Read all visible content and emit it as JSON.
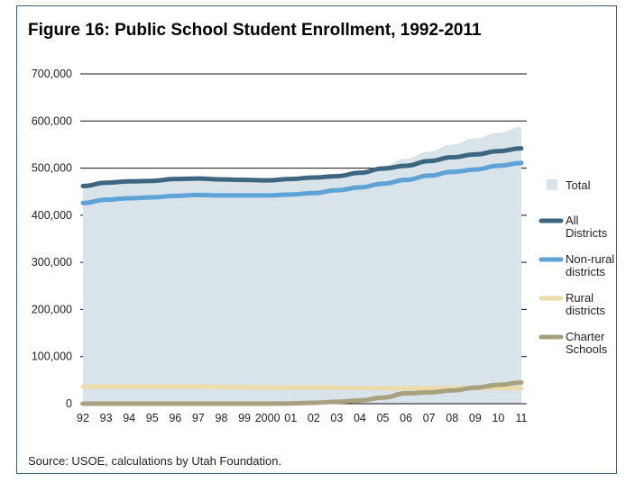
{
  "chart_data": {
    "type": "area",
    "title": "Figure 16: Public School Student Enrollment, 1992-2011",
    "source": "Source: USOE, calculations by Utah Foundation.",
    "categories": [
      "92",
      "93",
      "94",
      "95",
      "96",
      "97",
      "98",
      "99",
      "2000",
      "01",
      "02",
      "03",
      "04",
      "05",
      "06",
      "07",
      "08",
      "09",
      "10",
      "11"
    ],
    "ylim": [
      0,
      700000
    ],
    "yticks": [
      "0",
      "100,000",
      "200,000",
      "300,000",
      "400,000",
      "500,000",
      "600,000",
      "700,000"
    ],
    "ytick_values": [
      0,
      100000,
      200000,
      300000,
      400000,
      500000,
      600000,
      700000
    ],
    "grid": "horizontal",
    "legend_position": "right",
    "series": [
      {
        "key": "total",
        "name": "Total",
        "kind": "area",
        "color": "#d8e3ea",
        "values": [
          462000,
          469000,
          472000,
          474000,
          477000,
          479000,
          477000,
          475000,
          473000,
          476000,
          479000,
          482000,
          490000,
          505000,
          520000,
          535000,
          550000,
          563000,
          575000,
          587000
        ]
      },
      {
        "key": "all",
        "name": "All Districts",
        "name_lines": [
          "All",
          "Districts"
        ],
        "kind": "line",
        "color": "#3d6680",
        "values": [
          462000,
          469000,
          472000,
          473000,
          477000,
          478000,
          476000,
          475000,
          474000,
          477000,
          480000,
          483000,
          490000,
          499000,
          505000,
          515000,
          523000,
          529000,
          536000,
          542000
        ]
      },
      {
        "key": "nonrural",
        "name": "Non-rural districts",
        "name_lines": [
          "Non-rural",
          "districts"
        ],
        "kind": "line",
        "color": "#5ea3d6",
        "values": [
          426000,
          433000,
          436000,
          438000,
          441000,
          443000,
          442000,
          442000,
          442000,
          444000,
          447000,
          453000,
          459000,
          467000,
          475000,
          484000,
          492000,
          497000,
          505000,
          511000
        ]
      },
      {
        "key": "rural",
        "name": "Rural districts",
        "name_lines": [
          "Rural",
          "districts"
        ],
        "kind": "line",
        "color": "#ecdcaa",
        "values": [
          36000,
          36000,
          36000,
          36000,
          36000,
          36000,
          35500,
          35000,
          34500,
          34000,
          34000,
          34000,
          33500,
          33000,
          33000,
          33000,
          33000,
          33000,
          33000,
          33000
        ]
      },
      {
        "key": "charter",
        "name": "Charter Schools",
        "name_lines": [
          "Charter",
          "Schools"
        ],
        "kind": "line",
        "color": "#a7a17f",
        "values": [
          0,
          0,
          0,
          0,
          0,
          0,
          0,
          0,
          0,
          500,
          2000,
          4000,
          7000,
          13000,
          22000,
          24000,
          28000,
          34000,
          40000,
          45000
        ]
      }
    ]
  }
}
